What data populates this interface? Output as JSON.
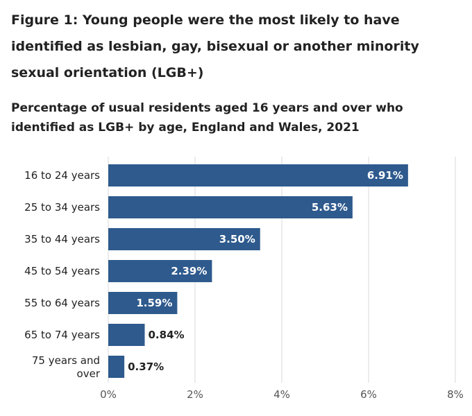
{
  "figure": {
    "title": "Figure 1: Young people were the most likely to have identified as lesbian, gay, bisexual or another minority sexual orientation (LGB+)",
    "subtitle": "Percentage of usual residents aged 16 years and over who identified as LGB+ by age, England and Wales, 2021"
  },
  "colors": {
    "bar": "#2e5a8d",
    "gridline": "#d9d9d9",
    "axis_text": "#555555",
    "label_text": "#222222",
    "inside_label": "#ffffff"
  },
  "chart_data": {
    "type": "bar",
    "orientation": "horizontal",
    "title": "Percentage of usual residents aged 16 years and over who identified as LGB+ by age, England and Wales, 2021",
    "categories": [
      "16 to 24 years",
      "25 to 34 years",
      "35 to 44 years",
      "45 to 54 years",
      "55 to 64 years",
      "65 to 74 years",
      "75 years and over"
    ],
    "values": [
      6.91,
      5.63,
      3.5,
      2.39,
      1.59,
      0.84,
      0.37
    ],
    "value_labels": [
      "6.91%",
      "5.63%",
      "3.50%",
      "2.39%",
      "1.59%",
      "0.84%",
      "0.37%"
    ],
    "xlim": [
      0,
      8
    ],
    "x_ticks": [
      0,
      2,
      4,
      6,
      8
    ],
    "x_tick_labels": [
      "0%",
      "2%",
      "4%",
      "6%",
      "8%"
    ],
    "xlabel": "",
    "ylabel": "",
    "grid": true
  }
}
